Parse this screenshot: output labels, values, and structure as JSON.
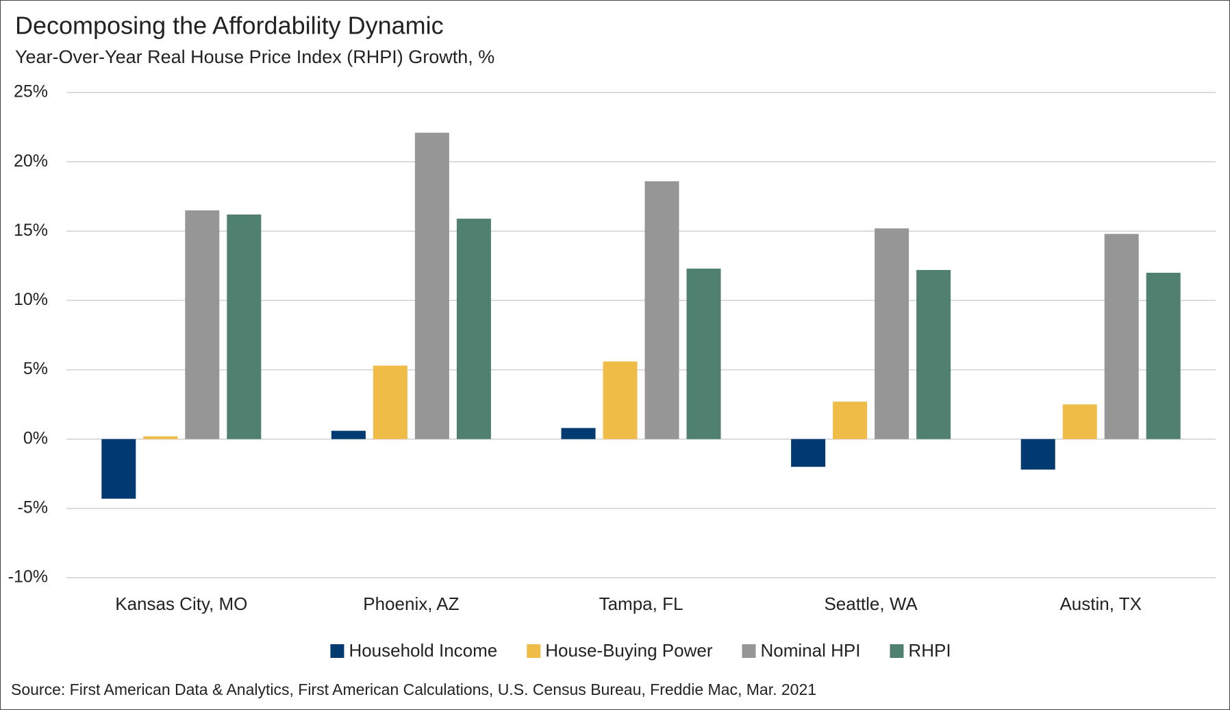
{
  "chart_data": {
    "type": "bar",
    "title": "Decomposing the Affordability Dynamic",
    "subtitle": "Year-Over-Year Real House Price Index (RHPI) Growth, %",
    "source": "Source: First American Data & Analytics, First American Calculations, U.S. Census Bureau, Freddie Mac, Mar. 2021",
    "categories": [
      "Kansas City, MO",
      "Phoenix, AZ",
      "Tampa, FL",
      "Seattle, WA",
      "Austin, TX"
    ],
    "series": [
      {
        "name": "Household Income",
        "color": "#003a70",
        "values": [
          -4.3,
          0.6,
          0.8,
          -2.0,
          -2.2
        ]
      },
      {
        "name": "House-Buying Power",
        "color": "#f0bc48",
        "values": [
          0.2,
          5.3,
          5.6,
          2.7,
          2.5
        ]
      },
      {
        "name": "Nominal HPI",
        "color": "#969696",
        "values": [
          16.5,
          22.1,
          18.6,
          15.2,
          14.8
        ]
      },
      {
        "name": "RHPI",
        "color": "#508170",
        "values": [
          16.2,
          15.9,
          12.3,
          12.2,
          12.0
        ]
      }
    ],
    "ylim": [
      -10,
      25
    ],
    "yticks": [
      {
        "value": -10,
        "label": "-10%"
      },
      {
        "value": -5,
        "label": "-5%"
      },
      {
        "value": 0,
        "label": "0%"
      },
      {
        "value": 5,
        "label": "5%"
      },
      {
        "value": 10,
        "label": "10%"
      },
      {
        "value": 15,
        "label": "15%"
      },
      {
        "value": 20,
        "label": "20%"
      },
      {
        "value": 25,
        "label": "25%"
      }
    ],
    "grid": true,
    "legend": "bottom"
  }
}
